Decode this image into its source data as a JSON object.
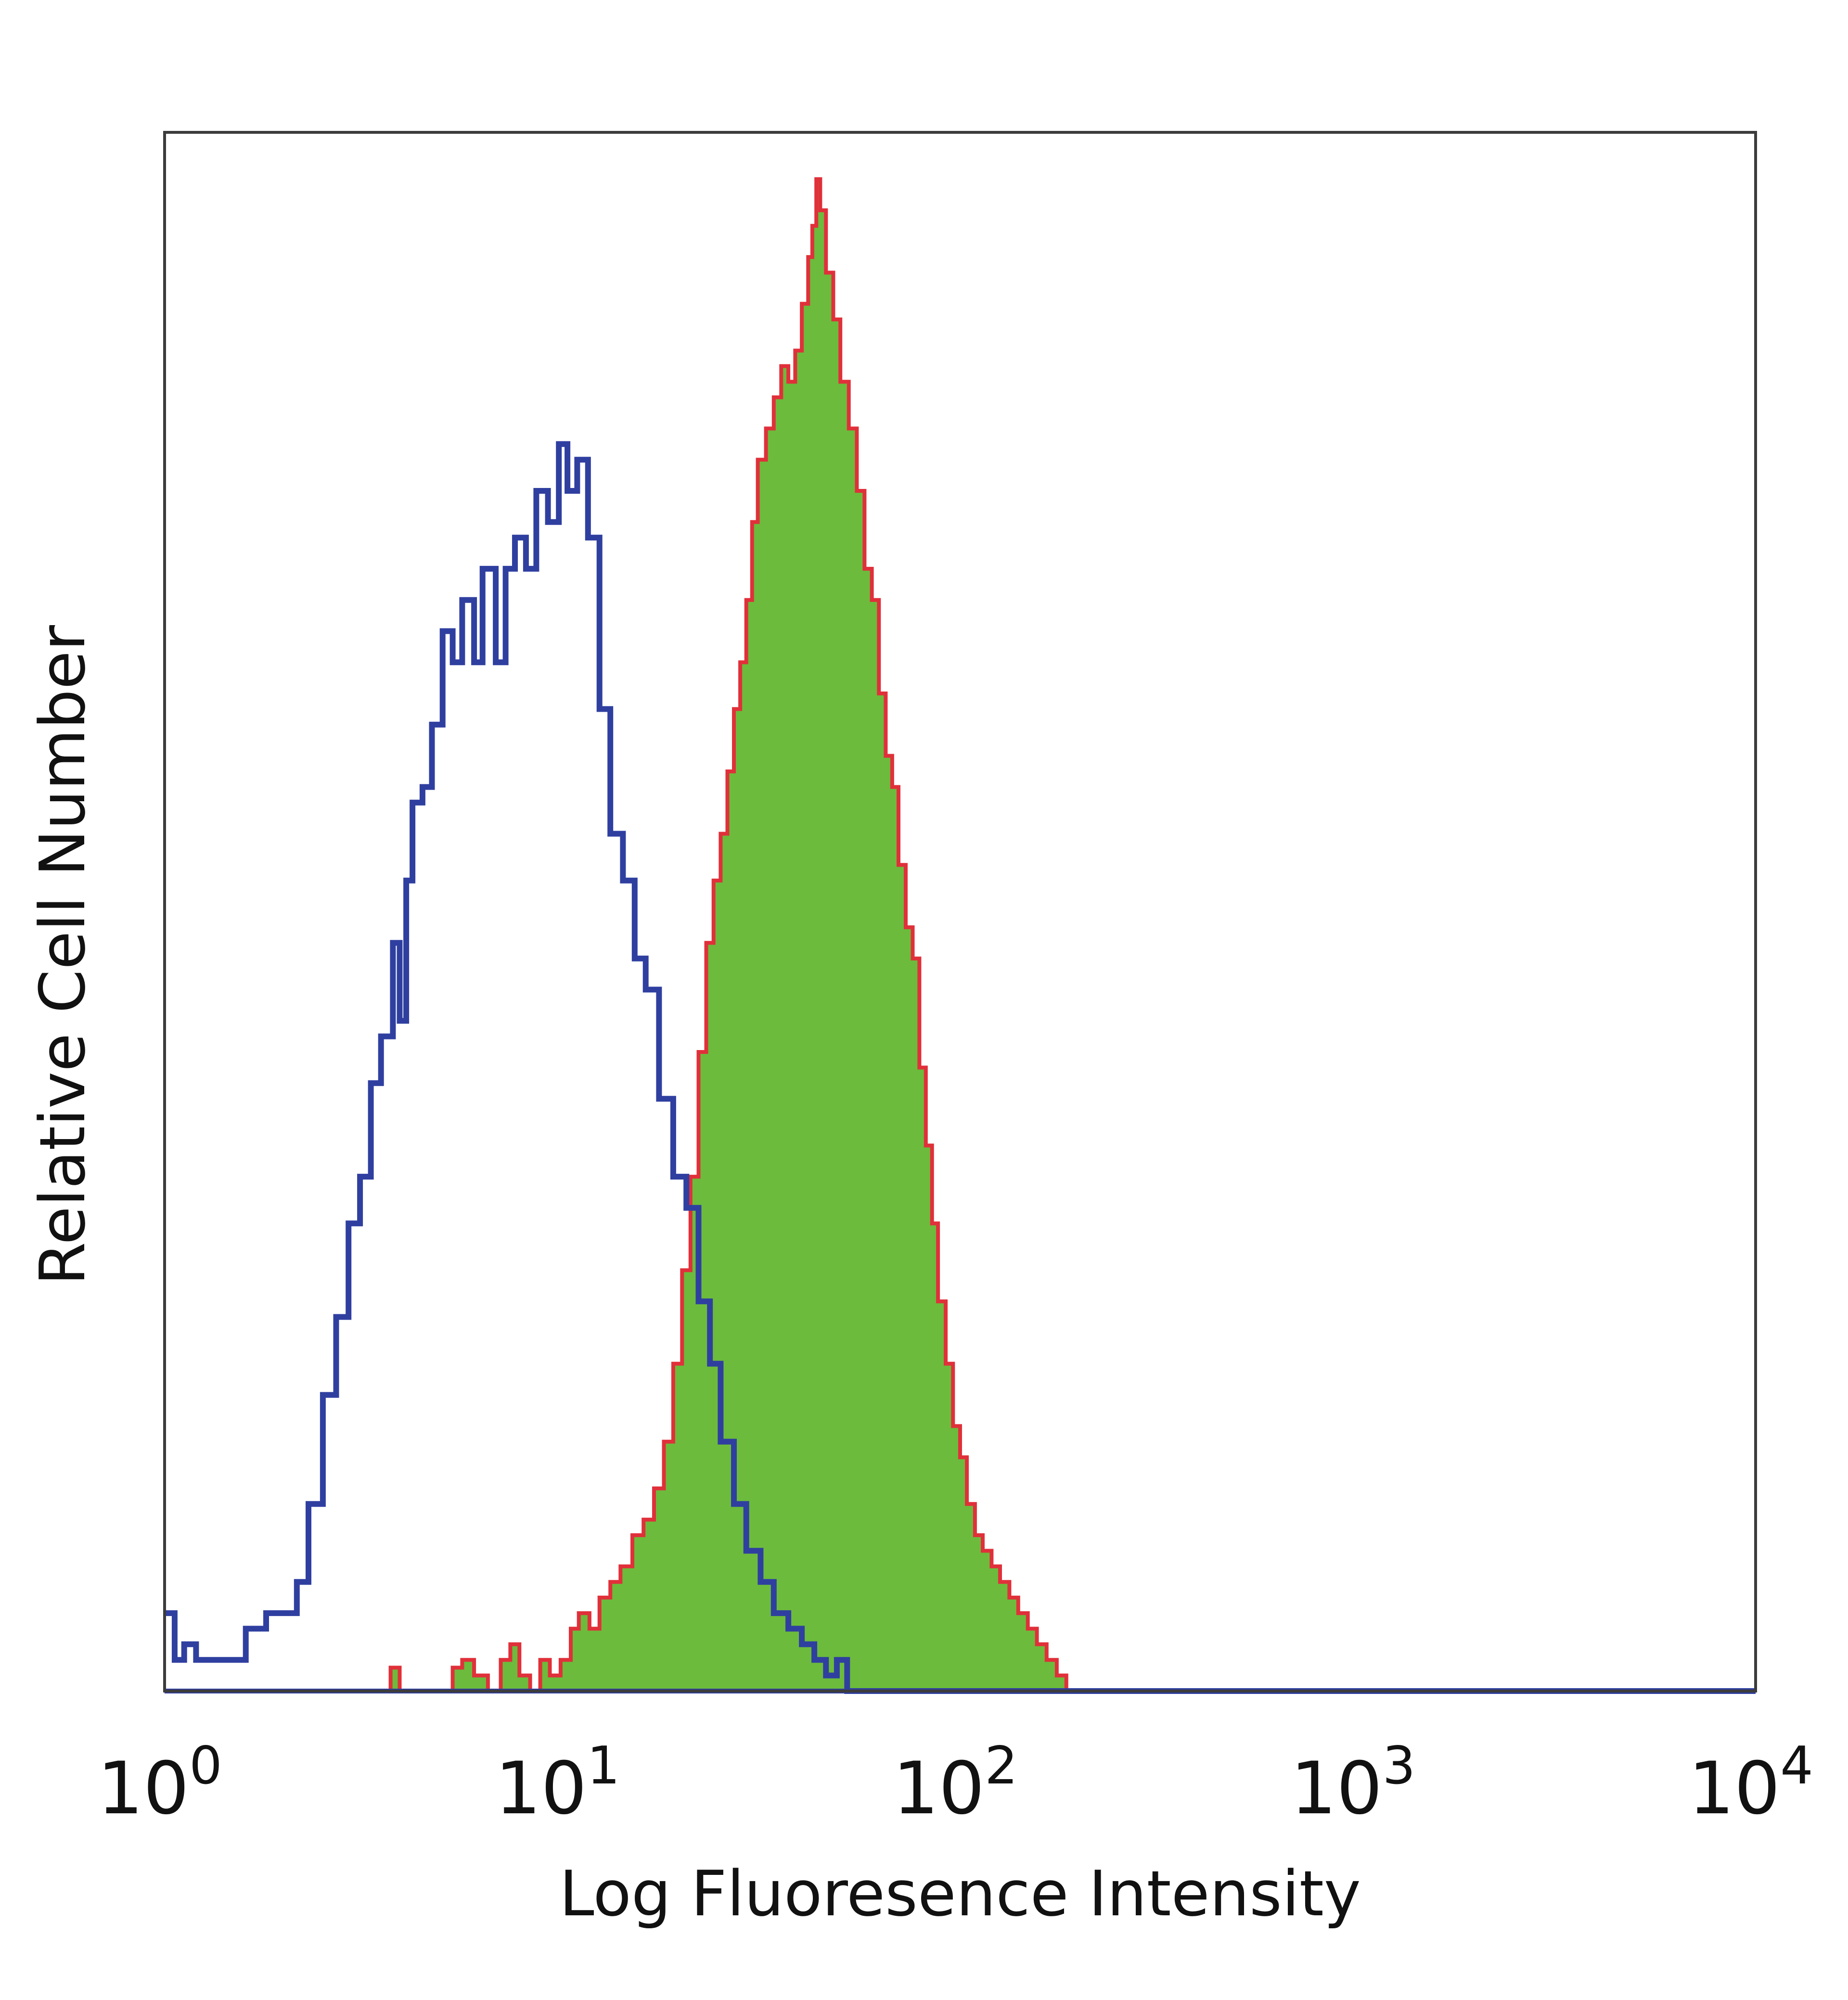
{
  "chart_data": {
    "type": "area",
    "title": "",
    "xlabel": "Log Fluoresence Intensity",
    "ylabel": "Relative Cell Number",
    "x_scale": "log",
    "xlim": [
      1,
      10000
    ],
    "ylim": [
      0,
      1
    ],
    "grid": false,
    "legend": "none",
    "x_ticks": [
      {
        "base": "10",
        "exp": "0"
      },
      {
        "base": "10",
        "exp": "1"
      },
      {
        "base": "10",
        "exp": "2"
      },
      {
        "base": "10",
        "exp": "3"
      },
      {
        "base": "10",
        "exp": "4"
      }
    ],
    "series": [
      {
        "style": "outline",
        "color": "#2f3fa0",
        "points": [
          [
            1.0,
            0.05
          ],
          [
            1.06,
            0.02
          ],
          [
            1.12,
            0.03
          ],
          [
            1.2,
            0.02
          ],
          [
            1.3,
            0.02
          ],
          [
            1.45,
            0.02
          ],
          [
            1.6,
            0.04
          ],
          [
            1.8,
            0.05
          ],
          [
            2.0,
            0.05
          ],
          [
            2.15,
            0.07
          ],
          [
            2.3,
            0.12
          ],
          [
            2.5,
            0.19
          ],
          [
            2.7,
            0.24
          ],
          [
            2.9,
            0.3
          ],
          [
            3.1,
            0.33
          ],
          [
            3.3,
            0.39
          ],
          [
            3.5,
            0.42
          ],
          [
            3.75,
            0.48
          ],
          [
            3.9,
            0.43
          ],
          [
            4.05,
            0.52
          ],
          [
            4.2,
            0.57
          ],
          [
            4.45,
            0.58
          ],
          [
            4.7,
            0.62
          ],
          [
            5.0,
            0.68
          ],
          [
            5.3,
            0.66
          ],
          [
            5.6,
            0.7
          ],
          [
            6.0,
            0.66
          ],
          [
            6.3,
            0.72
          ],
          [
            6.8,
            0.66
          ],
          [
            7.2,
            0.72
          ],
          [
            7.6,
            0.74
          ],
          [
            8.1,
            0.72
          ],
          [
            8.6,
            0.77
          ],
          [
            9.2,
            0.75
          ],
          [
            9.8,
            0.8
          ],
          [
            10.3,
            0.77
          ],
          [
            10.9,
            0.79
          ],
          [
            11.6,
            0.74
          ],
          [
            12.4,
            0.63
          ],
          [
            13.2,
            0.55
          ],
          [
            14.2,
            0.52
          ],
          [
            15.2,
            0.47
          ],
          [
            16.2,
            0.45
          ],
          [
            17.5,
            0.38
          ],
          [
            19.0,
            0.33
          ],
          [
            20.5,
            0.31
          ],
          [
            22.0,
            0.25
          ],
          [
            23.5,
            0.21
          ],
          [
            25.0,
            0.16
          ],
          [
            27.0,
            0.12
          ],
          [
            29.0,
            0.09
          ],
          [
            31.5,
            0.07
          ],
          [
            34.0,
            0.05
          ],
          [
            37.0,
            0.04
          ],
          [
            40.0,
            0.03
          ],
          [
            43.0,
            0.02
          ],
          [
            46.0,
            0.01
          ],
          [
            49.0,
            0.02
          ],
          [
            52.0,
            0.0
          ],
          [
            10000,
            0.0
          ]
        ]
      },
      {
        "style": "filled",
        "color": "#6cbb3c",
        "edge_color": "#e0303a",
        "points": [
          [
            1.0,
            0.0
          ],
          [
            3.5,
            0.0
          ],
          [
            3.7,
            0.015
          ],
          [
            3.9,
            0.0
          ],
          [
            5.0,
            0.0
          ],
          [
            5.3,
            0.015
          ],
          [
            5.6,
            0.02
          ],
          [
            6.0,
            0.01
          ],
          [
            6.5,
            0.0
          ],
          [
            7.0,
            0.02
          ],
          [
            7.4,
            0.03
          ],
          [
            7.8,
            0.01
          ],
          [
            8.3,
            0.0
          ],
          [
            8.8,
            0.02
          ],
          [
            9.3,
            0.01
          ],
          [
            9.9,
            0.02
          ],
          [
            10.5,
            0.04
          ],
          [
            11.0,
            0.05
          ],
          [
            11.7,
            0.04
          ],
          [
            12.4,
            0.06
          ],
          [
            13.2,
            0.07
          ],
          [
            14.0,
            0.08
          ],
          [
            15.0,
            0.1
          ],
          [
            16.0,
            0.11
          ],
          [
            17.0,
            0.13
          ],
          [
            18.0,
            0.16
          ],
          [
            19.0,
            0.21
          ],
          [
            20.0,
            0.27
          ],
          [
            21.0,
            0.33
          ],
          [
            22.0,
            0.41
          ],
          [
            23.0,
            0.48
          ],
          [
            24.0,
            0.52
          ],
          [
            25.0,
            0.55
          ],
          [
            26.0,
            0.59
          ],
          [
            27.0,
            0.63
          ],
          [
            28.0,
            0.66
          ],
          [
            29.0,
            0.7
          ],
          [
            30.0,
            0.75
          ],
          [
            31.0,
            0.79
          ],
          [
            32.5,
            0.81
          ],
          [
            34.0,
            0.83
          ],
          [
            35.5,
            0.85
          ],
          [
            37.0,
            0.84
          ],
          [
            38.5,
            0.86
          ],
          [
            40.0,
            0.89
          ],
          [
            41.5,
            0.92
          ],
          [
            42.5,
            0.94
          ],
          [
            43.5,
            0.97
          ],
          [
            44.5,
            0.95
          ],
          [
            46.0,
            0.91
          ],
          [
            48.0,
            0.88
          ],
          [
            50.0,
            0.84
          ],
          [
            52.5,
            0.81
          ],
          [
            55.0,
            0.77
          ],
          [
            57.5,
            0.72
          ],
          [
            60.0,
            0.7
          ],
          [
            62.5,
            0.64
          ],
          [
            65.0,
            0.6
          ],
          [
            67.5,
            0.58
          ],
          [
            70.0,
            0.53
          ],
          [
            73.0,
            0.49
          ],
          [
            76.0,
            0.47
          ],
          [
            79.0,
            0.4
          ],
          [
            82.0,
            0.35
          ],
          [
            85.0,
            0.3
          ],
          [
            88.0,
            0.25
          ],
          [
            92.0,
            0.21
          ],
          [
            96.0,
            0.17
          ],
          [
            100.0,
            0.15
          ],
          [
            104.0,
            0.12
          ],
          [
            109.0,
            0.1
          ],
          [
            114.0,
            0.09
          ],
          [
            120.0,
            0.08
          ],
          [
            126.0,
            0.07
          ],
          [
            133.0,
            0.06
          ],
          [
            140.0,
            0.05
          ],
          [
            148.0,
            0.04
          ],
          [
            156.0,
            0.03
          ],
          [
            165.0,
            0.02
          ],
          [
            175.0,
            0.01
          ],
          [
            185.0,
            0.0
          ],
          [
            10000,
            0.0
          ]
        ]
      }
    ]
  }
}
